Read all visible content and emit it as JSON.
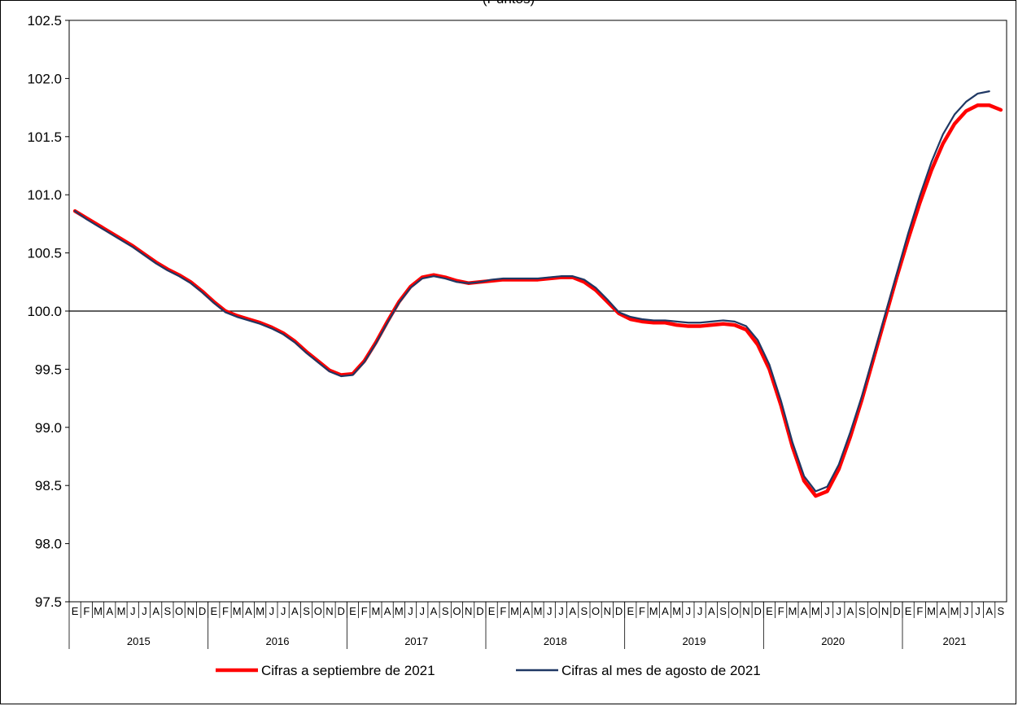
{
  "chart_data": {
    "type": "line",
    "title": "(Puntos)",
    "y_ticks": [
      "97.5",
      "98.0",
      "98.5",
      "99.0",
      "99.5",
      "100.0",
      "100.5",
      "101.0",
      "101.5",
      "102.0",
      "102.5"
    ],
    "ylim": [
      97.5,
      102.5
    ],
    "reference_line": 100.0,
    "month_labels": [
      "E",
      "F",
      "M",
      "A",
      "M",
      "J",
      "J",
      "A",
      "S",
      "O",
      "N",
      "D"
    ],
    "years": [
      "2015",
      "2016",
      "2017",
      "2018",
      "2019",
      "2020",
      "2021"
    ],
    "last_year_months": 9,
    "series": [
      {
        "name": "Cifras a septiembre de 2021",
        "color": "#ff0000",
        "values": [
          100.86,
          100.8,
          100.74,
          100.68,
          100.62,
          100.56,
          100.49,
          100.42,
          100.36,
          100.31,
          100.25,
          100.17,
          100.08,
          100.0,
          99.96,
          99.93,
          99.9,
          99.86,
          99.81,
          99.74,
          99.65,
          99.57,
          99.49,
          99.45,
          99.46,
          99.57,
          99.73,
          99.91,
          100.08,
          100.21,
          100.29,
          100.31,
          100.29,
          100.26,
          100.24,
          100.25,
          100.26,
          100.27,
          100.27,
          100.27,
          100.27,
          100.28,
          100.29,
          100.29,
          100.25,
          100.18,
          100.08,
          99.98,
          99.93,
          99.91,
          99.9,
          99.9,
          99.88,
          99.87,
          99.87,
          99.88,
          99.89,
          99.88,
          99.84,
          99.71,
          99.5,
          99.19,
          98.83,
          98.54,
          98.41,
          98.45,
          98.64,
          98.92,
          99.24,
          99.59,
          99.94,
          100.29,
          100.62,
          100.93,
          101.21,
          101.44,
          101.61,
          101.72,
          101.77,
          101.77,
          101.73
        ]
      },
      {
        "name": "Cifras al mes de agosto de 2021",
        "color": "#1f3864",
        "values": [
          100.86,
          100.79,
          100.73,
          100.67,
          100.61,
          100.55,
          100.48,
          100.41,
          100.35,
          100.3,
          100.24,
          100.16,
          100.07,
          99.99,
          99.95,
          99.92,
          99.89,
          99.85,
          99.8,
          99.73,
          99.64,
          99.56,
          99.48,
          99.44,
          99.45,
          99.56,
          99.72,
          99.9,
          100.07,
          100.2,
          100.28,
          100.3,
          100.28,
          100.25,
          100.24,
          100.25,
          100.27,
          100.28,
          100.28,
          100.28,
          100.28,
          100.29,
          100.3,
          100.3,
          100.27,
          100.2,
          100.1,
          99.99,
          99.95,
          99.93,
          99.92,
          99.92,
          99.91,
          99.9,
          99.9,
          99.91,
          99.92,
          99.91,
          99.87,
          99.75,
          99.54,
          99.23,
          98.87,
          98.58,
          98.45,
          98.49,
          98.68,
          98.96,
          99.27,
          99.62,
          99.97,
          100.32,
          100.67,
          100.99,
          101.28,
          101.52,
          101.69,
          101.8,
          101.87,
          101.89
        ]
      }
    ],
    "legend_position": "bottom-center"
  }
}
